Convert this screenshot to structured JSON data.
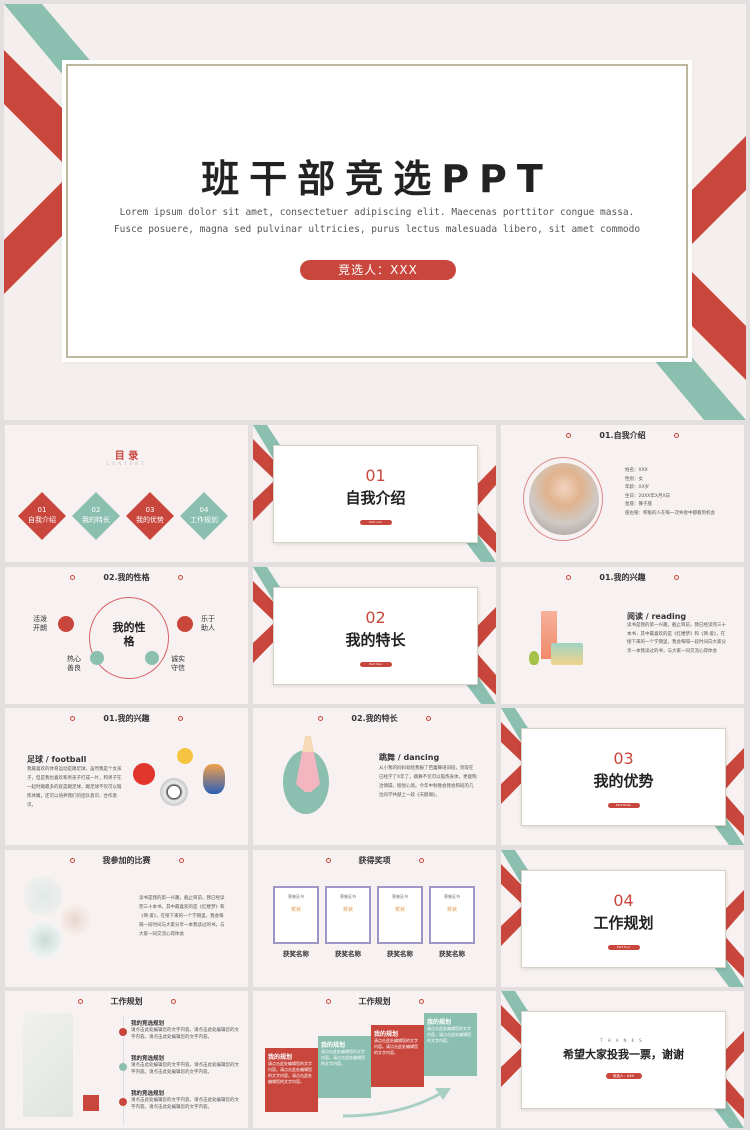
{
  "colors": {
    "red": "#c9463d",
    "teal": "#8bbfb0",
    "background": "#f7f2f1"
  },
  "cover": {
    "title": "班干部竞选PPT",
    "subtitle_line1": "Lorem ipsum dolor sit amet, consectetuer adipiscing elit. Maecenas porttitor congue massa.",
    "subtitle_line2": "Fusce posuere, magna sed pulvinar ultricies, purus lectus malesuada libero, sit amet commodo",
    "candidate": "竞选人：XXX"
  },
  "toc": {
    "title": "目 录",
    "subtitle": "CONTENT",
    "items": [
      {
        "num": "01",
        "label": "自我介绍"
      },
      {
        "num": "02",
        "label": "我的特长"
      },
      {
        "num": "03",
        "label": "我的优势"
      },
      {
        "num": "04",
        "label": "工作规划"
      }
    ]
  },
  "sections": [
    {
      "num": "01",
      "title": "自我介绍",
      "tag": "Part one"
    },
    {
      "num": "02",
      "title": "我的特长",
      "tag": "Part two"
    },
    {
      "num": "03",
      "title": "我的优势",
      "tag": "Part three"
    },
    {
      "num": "04",
      "title": "工作规划",
      "tag": "Part four"
    }
  ],
  "profile": {
    "header": "01.自我介绍",
    "fields": [
      "姓名：XXX",
      "性别：女",
      "年龄：XX岁",
      "生日：20XX年X月X日",
      "星座：狮子座",
      "座右铭：积极的人在每一次失败中都看到机会"
    ]
  },
  "personality": {
    "header": "02.我的性格",
    "center": "我的性格",
    "traits": [
      "活泼开朗",
      "乐于助人",
      "热心善良",
      "诚实守信"
    ]
  },
  "reading": {
    "header": "01.我的兴趣",
    "title": "阅读 / reading",
    "text": "读书是我的第一兴趣，截止目前，我已经读完三十本书，其中最喜欢的是《红楼梦》和《简·爱》，在接下来的一个学期里，我会每隔一段时间向大家分享一本我读过的书，与大家一同交流心得体会"
  },
  "football": {
    "header": "01.我的兴趣",
    "title": "足球 / football",
    "text": "我最喜欢的体育运动是踢足球，虽然我是个女孩子，但是我也喜欢和男孩子打成一片，和男子在一起时踢最多的就是踢足球，踢足球不仅可以锻炼体魄，还可以培养我们的团队意识、合作意识。"
  },
  "dancing": {
    "header": "02.我的特长",
    "title": "跳舞 / dancing",
    "text": "从小我的妈妈就给我报了芭蕾舞培训班，到现在已经学了X年了，跳舞不仅可以锻炼身体，更能陶冶情操，愉悦心境。今年中秋晚会我会和班的几位同学共献上一段《天鹅湖》。"
  },
  "competition": {
    "header": "我参加的比赛",
    "text": "读书是我的第一兴趣，截止目前，我已经读完三十本书，其中最喜欢的是《红楼梦》和《简·爱》，在接下来的一个学期里，我会每隔一段时间与大家分享一本我读过的书，与大家一同交流心得体会"
  },
  "awards": {
    "header": "获得奖项",
    "certificate": "荣誉证书",
    "award": "奖状",
    "items": [
      "获奖名称",
      "获奖名称",
      "获奖名称",
      "获奖名称"
    ]
  },
  "plan1": {
    "header": "工作规划",
    "items": [
      {
        "title": "我的竞选规划",
        "text": "请点击此处编辑您的文字内容。请点击此处编辑您的文字内容。请点击此处编辑您的文字内容。"
      },
      {
        "title": "我的竞选规划",
        "text": "请点击此处编辑您的文字内容。请点击此处编辑您的文字内容。请点击此处编辑您的文字内容。"
      },
      {
        "title": "我的竞选规划",
        "text": "请点击此处编辑您的文字内容。请点击此处编辑您的文字内容。请点击此处编辑您的文字内容。"
      }
    ]
  },
  "plan2": {
    "header": "工作规划",
    "steps": [
      {
        "title": "我的规划",
        "text": "请点击此处编辑您的文字内容。请点击此处编辑您的文字内容。请点击此处编辑您的文字内容。"
      },
      {
        "title": "我的规划",
        "text": "请点击此处编辑您的文字内容。请点击此处编辑您的文字内容。"
      },
      {
        "title": "我的规划",
        "text": "请点击此处编辑您的文字内容。请点击此处编辑您的文字内容。"
      },
      {
        "title": "我的规划",
        "text": "请点击此处编辑您的文字内容。请点击此处编辑您的文字内容。"
      }
    ]
  },
  "thanks": {
    "small": "THANKS",
    "title": "希望大家投我一票，谢谢",
    "candidate": "竞选人：XXX"
  }
}
